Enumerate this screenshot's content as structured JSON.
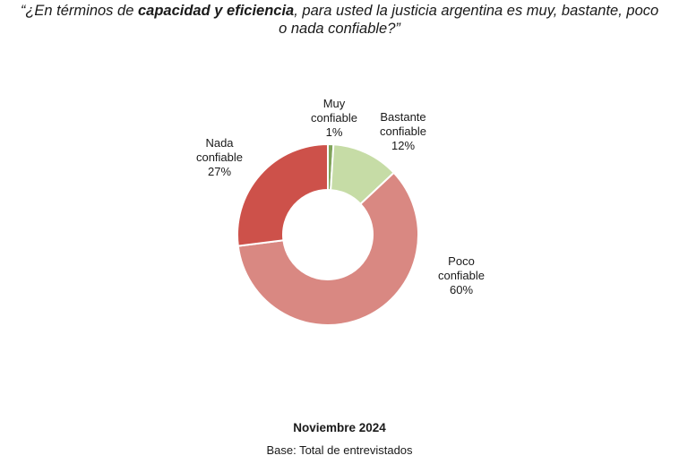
{
  "title": {
    "prefix": "“¿En términos de ",
    "emphasis": "capacidad y eficiencia",
    "rest_line1": ", para usted la justicia argentina es muy, bastante, poco",
    "line2": "o nada confiable?”"
  },
  "chart_data": {
    "type": "pie",
    "style": "donut",
    "slices": [
      {
        "label_line1": "Muy",
        "label_line2": "confiable",
        "value": 1,
        "value_label": "1%",
        "color": "#7fa35a"
      },
      {
        "label_line1": "Bastante",
        "label_line2": "confiable",
        "value": 12,
        "value_label": "12%",
        "color": "#c6dca6"
      },
      {
        "label_line1": "Poco",
        "label_line2": "confiable",
        "value": 60,
        "value_label": "60%",
        "color": "#d98882"
      },
      {
        "label_line1": "Nada",
        "label_line2": "confiable",
        "value": 27,
        "value_label": "27%",
        "color": "#cd514a"
      }
    ]
  },
  "footer": {
    "date": "Noviembre 2024",
    "base": "Base: Total de entrevistados"
  }
}
